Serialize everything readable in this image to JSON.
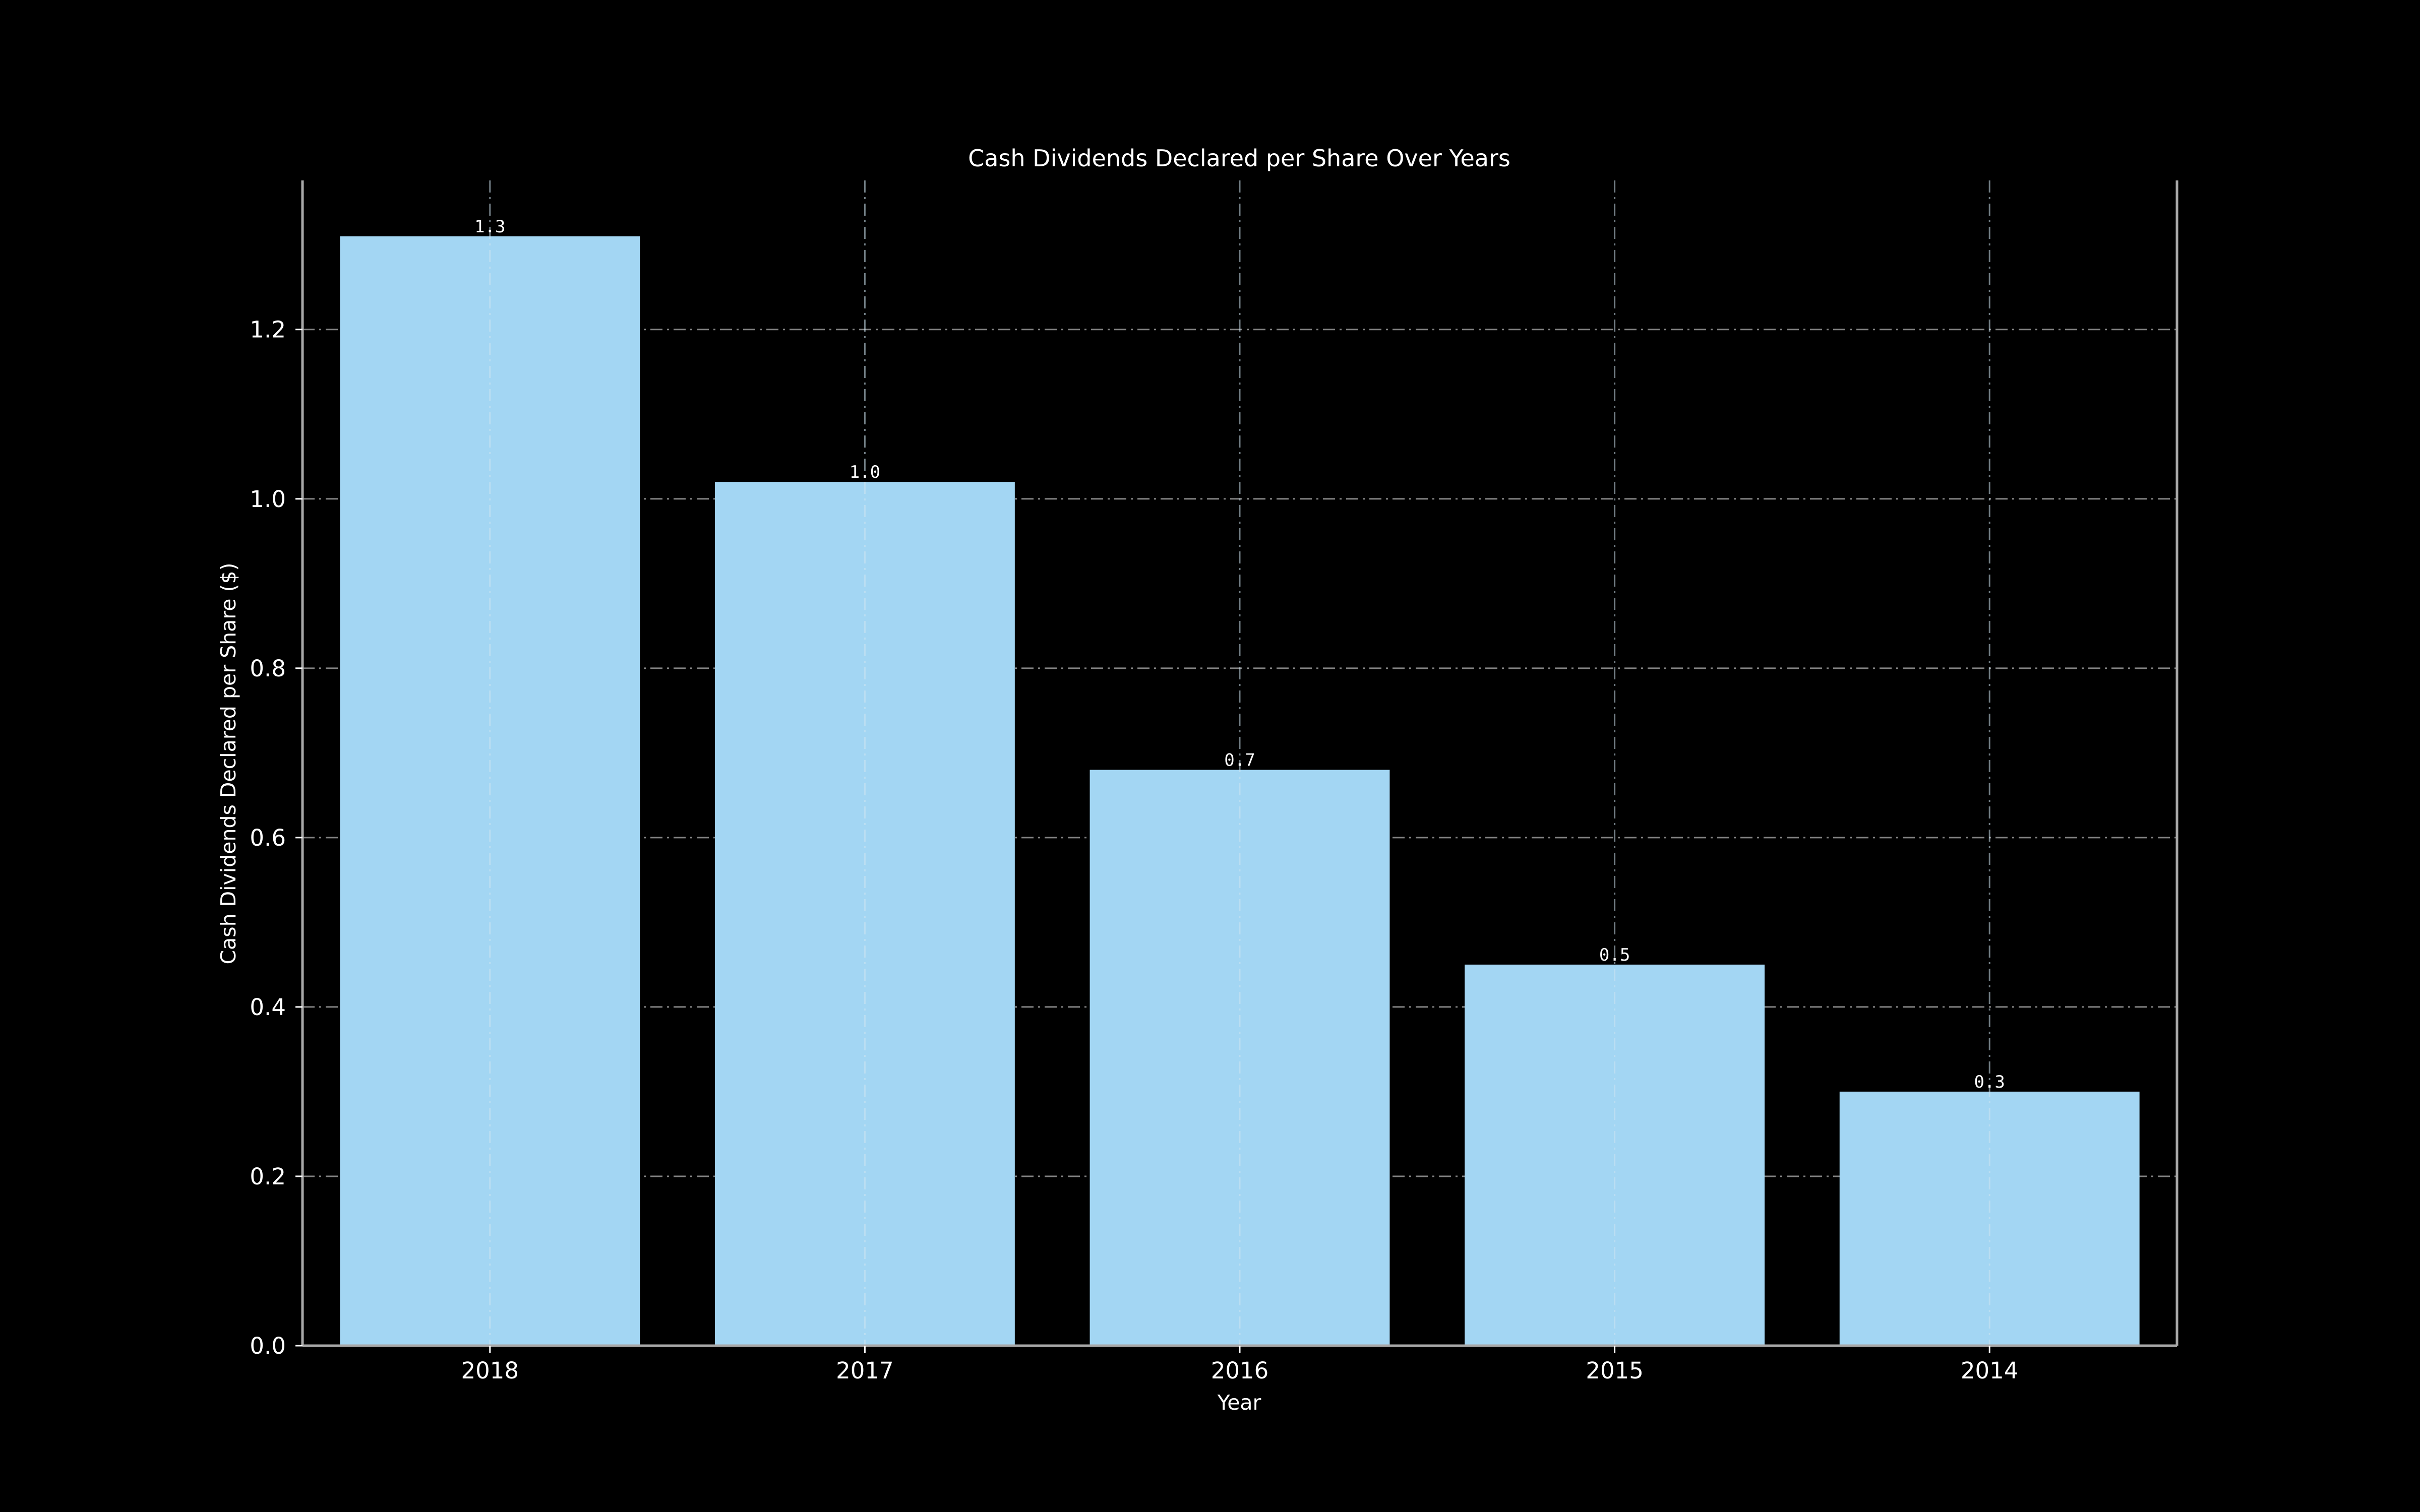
{
  "chart_data": {
    "type": "bar",
    "title": "Cash Dividends Declared per Share Over Years",
    "xlabel": "Year",
    "ylabel": "Cash Dividends Declared per Share ($)",
    "categories": [
      "2018",
      "2017",
      "2016",
      "2015",
      "2014"
    ],
    "values": [
      1.31,
      1.02,
      0.68,
      0.45,
      0.3
    ],
    "data_labels": [
      "1.3",
      "1.0",
      "0.7",
      "0.5",
      "0.3"
    ],
    "ylim": [
      0,
      1.376
    ],
    "yticks": [
      0.0,
      0.2,
      0.4,
      0.6,
      0.8,
      1.0,
      1.2
    ],
    "ytick_labels": [
      "0.0",
      "0.2",
      "0.4",
      "0.6",
      "0.8",
      "1.0",
      "1.2"
    ],
    "grid": true,
    "legend": "none",
    "colors": {
      "background": "#000000",
      "bar": "#a3d6f3",
      "text": "#ffffff",
      "grid": "#9a9a9a",
      "spine": "#a8a8a8"
    }
  }
}
